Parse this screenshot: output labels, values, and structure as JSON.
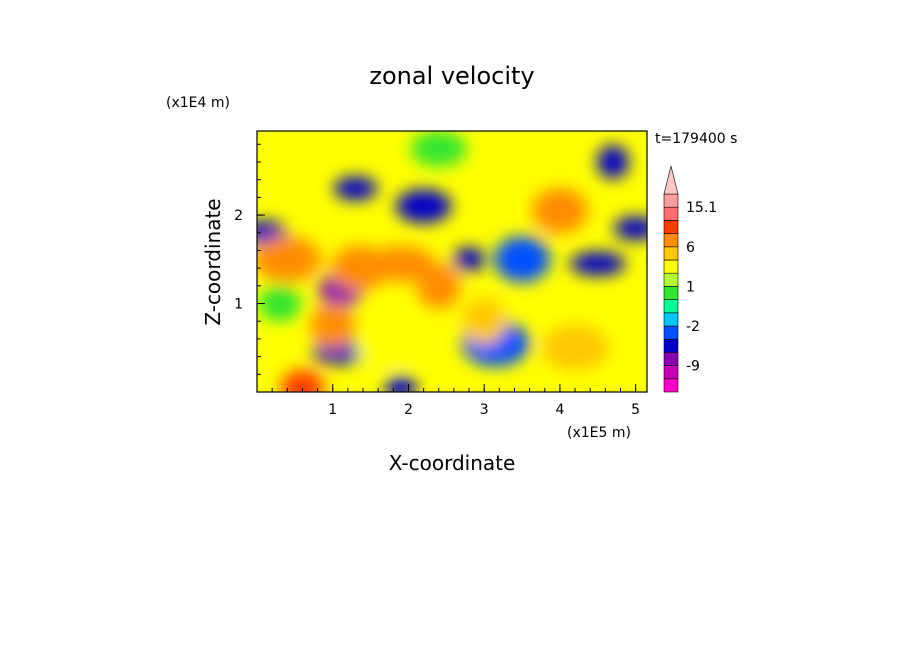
{
  "chart_data": {
    "type": "heatmap",
    "title": "zonal velocity",
    "xlabel": "X-coordinate",
    "ylabel": "Z-coordinate",
    "x_unit": "(x1E5 m)",
    "y_unit": "(x1E4 m)",
    "time_label": "t=179400 s",
    "xlim": [
      0,
      5.15
    ],
    "ylim": [
      0,
      2.95
    ],
    "x_ticks": [
      "1",
      "2",
      "3",
      "4",
      "5"
    ],
    "y_ticks": [
      "1",
      "2"
    ],
    "colorbar": {
      "levels": [
        -15,
        -12,
        -9,
        -6,
        -3,
        -2,
        -1,
        0,
        1,
        2,
        3,
        6,
        9,
        12,
        15.1
      ],
      "tick_labels": [
        "15.1",
        "6",
        "1",
        "-2",
        "-9"
      ],
      "colors": [
        "#ff00c8",
        "#c800b4",
        "#8c00b4",
        "#0000c8",
        "#0050ff",
        "#00c8ff",
        "#00ff96",
        "#32e632",
        "#b4ff32",
        "#ffff00",
        "#ffc800",
        "#ff8c00",
        "#ff3c00",
        "#ff6e6e",
        "#ff9c9c",
        "#ffc8c8"
      ]
    },
    "features": [
      {
        "x": 0.6,
        "z": 0.05,
        "value": 6
      },
      {
        "x": 1.1,
        "z": 1.15,
        "value": -12
      },
      {
        "x": 1.1,
        "z": 0.45,
        "value": -9
      },
      {
        "x": 1.0,
        "z": 0.75,
        "value": 4
      },
      {
        "x": 0.1,
        "z": 1.8,
        "value": -9
      },
      {
        "x": 0.4,
        "z": 1.5,
        "value": 4
      },
      {
        "x": 0.3,
        "z": 1.0,
        "value": -1
      },
      {
        "x": 1.35,
        "z": 1.4,
        "value": 5
      },
      {
        "x": 1.9,
        "z": 1.45,
        "value": 5
      },
      {
        "x": 2.4,
        "z": 1.2,
        "value": 4
      },
      {
        "x": 1.3,
        "z": 2.3,
        "value": -9
      },
      {
        "x": 2.2,
        "z": 2.1,
        "value": -9
      },
      {
        "x": 2.8,
        "z": 1.5,
        "value": -9
      },
      {
        "x": 3.5,
        "z": 1.5,
        "value": -6
      },
      {
        "x": 4.5,
        "z": 1.45,
        "value": -9
      },
      {
        "x": 4.7,
        "z": 2.6,
        "value": -9
      },
      {
        "x": 5.0,
        "z": 1.85,
        "value": -9
      },
      {
        "x": 3.15,
        "z": 0.55,
        "value": -6
      },
      {
        "x": 1.9,
        "z": 0.05,
        "value": -9
      },
      {
        "x": 4.0,
        "z": 2.05,
        "value": 4
      },
      {
        "x": 1.75,
        "z": 0.5,
        "value": 1.5
      },
      {
        "x": 3.0,
        "z": 0.8,
        "value": 2
      },
      {
        "x": 2.4,
        "z": 2.75,
        "value": -1
      },
      {
        "x": 4.2,
        "z": 0.5,
        "value": 2
      }
    ]
  }
}
